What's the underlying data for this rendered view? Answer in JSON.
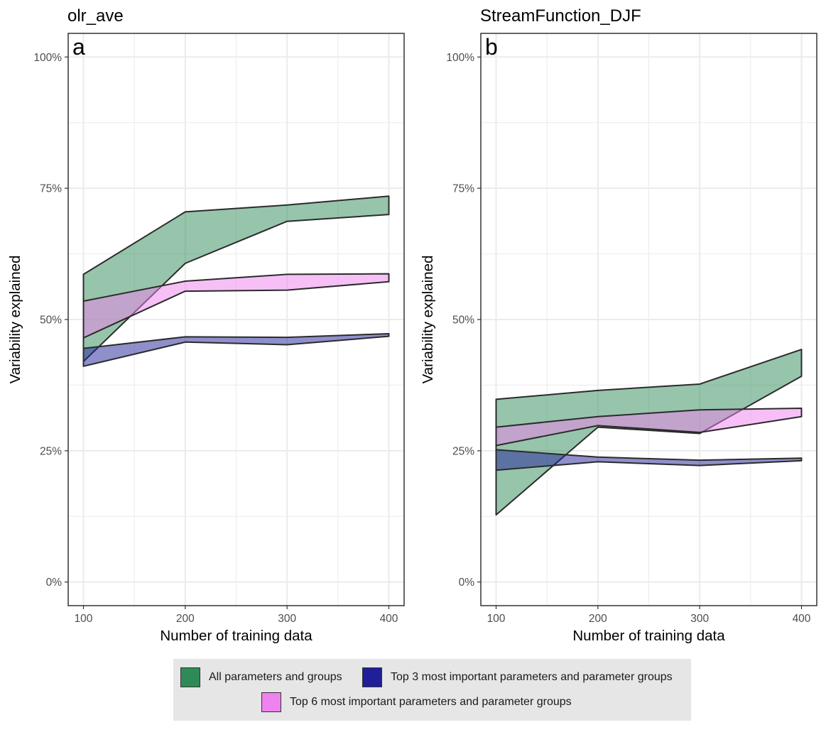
{
  "colors": {
    "all": "#2e8b57",
    "top3": "#1f1f9a",
    "top6": "#ee82ee",
    "grid": "#ebebeb",
    "axis_text": "#4d4d4d"
  },
  "chart_data": [
    {
      "type": "area",
      "title": "olr_ave",
      "panel_label": "a",
      "xlabel": "Number of training data",
      "ylabel": "Variability explained",
      "x": [
        100,
        200,
        300,
        400
      ],
      "xlim": [
        85,
        415
      ],
      "ylim": [
        -0.045,
        1.045
      ],
      "x_ticks": [
        100,
        200,
        300,
        400
      ],
      "y_ticks": [
        0,
        0.25,
        0.5,
        0.75,
        1.0
      ],
      "y_tick_labels": [
        "0%",
        "25%",
        "50%",
        "75%",
        "100%"
      ],
      "series": [
        {
          "name": "All parameters and groups",
          "key": "all",
          "lower": [
            0.42,
            0.607,
            0.687,
            0.7
          ],
          "upper": [
            0.586,
            0.705,
            0.718,
            0.735
          ]
        },
        {
          "name": "Top 6 most important parameters and parameter groups",
          "key": "top6",
          "lower": [
            0.465,
            0.554,
            0.556,
            0.572
          ],
          "upper": [
            0.535,
            0.573,
            0.586,
            0.587
          ]
        },
        {
          "name": "Top 3 most important parameters and parameter groups",
          "key": "top3",
          "lower": [
            0.411,
            0.457,
            0.452,
            0.468
          ],
          "upper": [
            0.445,
            0.467,
            0.466,
            0.473
          ]
        }
      ]
    },
    {
      "type": "area",
      "title": "StreamFunction_DJF",
      "panel_label": "b",
      "xlabel": "Number of training data",
      "ylabel": "Variability explained",
      "x": [
        100,
        200,
        300,
        400
      ],
      "xlim": [
        85,
        415
      ],
      "ylim": [
        -0.045,
        1.045
      ],
      "x_ticks": [
        100,
        200,
        300,
        400
      ],
      "y_ticks": [
        0,
        0.25,
        0.5,
        0.75,
        1.0
      ],
      "y_tick_labels": [
        "0%",
        "25%",
        "50%",
        "75%",
        "100%"
      ],
      "series": [
        {
          "name": "All parameters and groups",
          "key": "all",
          "lower": [
            0.128,
            0.295,
            0.283,
            0.392
          ],
          "upper": [
            0.348,
            0.365,
            0.377,
            0.443
          ]
        },
        {
          "name": "Top 6 most important parameters and parameter groups",
          "key": "top6",
          "lower": [
            0.26,
            0.298,
            0.285,
            0.315
          ],
          "upper": [
            0.295,
            0.315,
            0.328,
            0.331
          ]
        },
        {
          "name": "Top 3 most important parameters and parameter groups",
          "key": "top3",
          "lower": [
            0.213,
            0.229,
            0.222,
            0.231
          ],
          "upper": [
            0.252,
            0.238,
            0.232,
            0.236
          ]
        }
      ]
    }
  ],
  "legend": {
    "items": [
      {
        "key": "all",
        "label": "All parameters and groups"
      },
      {
        "key": "top3",
        "label": "Top 3 most important parameters and parameter groups"
      },
      {
        "key": "top6",
        "label": "Top 6 most important parameters and parameter groups"
      }
    ]
  }
}
